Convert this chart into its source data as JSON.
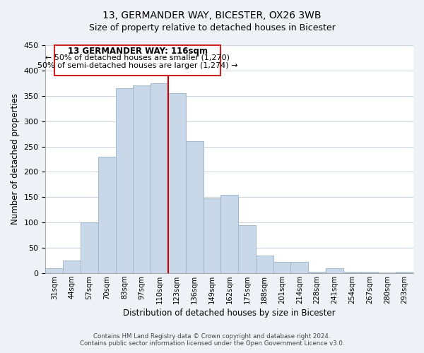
{
  "title": "13, GERMANDER WAY, BICESTER, OX26 3WB",
  "subtitle": "Size of property relative to detached houses in Bicester",
  "xlabel": "Distribution of detached houses by size in Bicester",
  "ylabel": "Number of detached properties",
  "bar_labels": [
    "31sqm",
    "44sqm",
    "57sqm",
    "70sqm",
    "83sqm",
    "97sqm",
    "110sqm",
    "123sqm",
    "136sqm",
    "149sqm",
    "162sqm",
    "175sqm",
    "188sqm",
    "201sqm",
    "214sqm",
    "228sqm",
    "241sqm",
    "254sqm",
    "267sqm",
    "280sqm",
    "293sqm"
  ],
  "bar_values": [
    10,
    25,
    100,
    230,
    365,
    370,
    375,
    355,
    260,
    148,
    155,
    95,
    35,
    22,
    22,
    2,
    10,
    2,
    2,
    1,
    2
  ],
  "bar_color": "#c8d8e8",
  "bar_edge_color": "#a0b8cc",
  "ylim": [
    0,
    450
  ],
  "yticks": [
    0,
    50,
    100,
    150,
    200,
    250,
    300,
    350,
    400,
    450
  ],
  "vline_x": 6.5,
  "vline_color": "#cc0000",
  "annotation_title": "13 GERMANDER WAY: 116sqm",
  "annotation_line1": "← 50% of detached houses are smaller (1,270)",
  "annotation_line2": "50% of semi-detached houses are larger (1,274) →",
  "footer1": "Contains HM Land Registry data © Crown copyright and database right 2024.",
  "footer2": "Contains public sector information licensed under the Open Government Licence v3.0.",
  "background_color": "#eef2f7",
  "plot_background": "#ffffff",
  "grid_color": "#c8d4e0"
}
